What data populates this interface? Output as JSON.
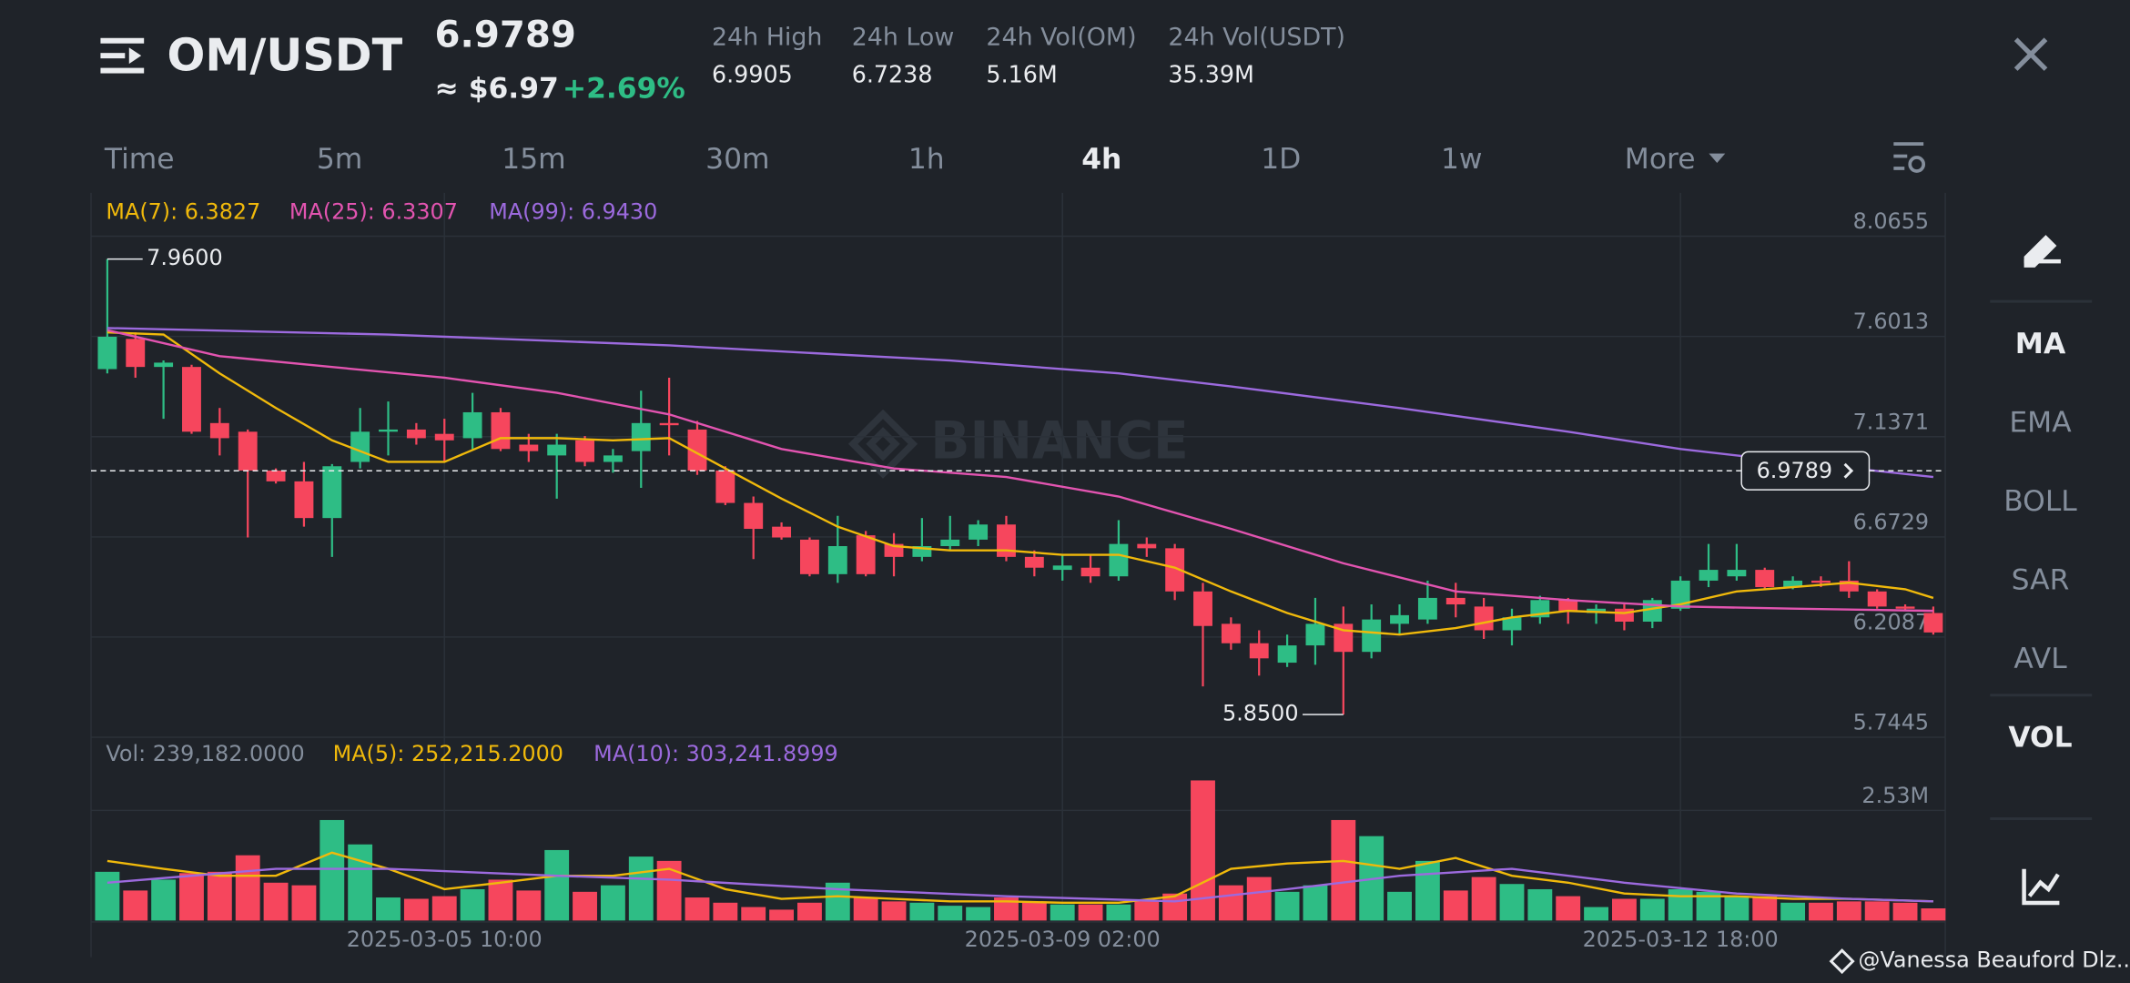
{
  "header": {
    "pair": "OM/USDT",
    "price": "6.9789",
    "price_usd": "≈ $6.97",
    "change": "+2.69%",
    "stats": [
      {
        "label": "24h High",
        "value": "6.9905"
      },
      {
        "label": "24h Low",
        "value": "6.7238"
      },
      {
        "label": "24h Vol(OM)",
        "value": "5.16M"
      },
      {
        "label": "24h Vol(USDT)",
        "value": "35.39M"
      }
    ]
  },
  "intervals": [
    "Time",
    "5m",
    "15m",
    "30m",
    "1h",
    "4h",
    "1D",
    "1w",
    "More"
  ],
  "active_interval": 5,
  "sidebar": [
    "MA",
    "EMA",
    "BOLL",
    "SAR",
    "AVL",
    "VOL"
  ],
  "watermark": "BINANCE",
  "footer": "@Vanessa Beauford Dlz...",
  "chart_data": {
    "type": "candlestick",
    "up_color": "#2ebd85",
    "down_color": "#f6465d",
    "legend": [
      "MA(7): 6.3827",
      "MA(25): 6.3307",
      "MA(99): 6.9430"
    ],
    "ylim": [
      5.7445,
      8.0655
    ],
    "yticks": [
      8.0655,
      7.6013,
      7.1371,
      6.6729,
      6.2087,
      5.7445
    ],
    "xticks": [
      {
        "value": 12,
        "label": "2025-03-05 10:00"
      },
      {
        "value": 34,
        "label": "2025-03-09 02:00"
      },
      {
        "value": 56,
        "label": "2025-03-12 18:00"
      }
    ],
    "last_price": 6.9789,
    "high_marker": {
      "index": 0,
      "value": 7.96,
      "label": "7.9600"
    },
    "low_marker": {
      "index": 44,
      "value": 5.85,
      "label": "5.8500"
    },
    "candles": [
      [
        7.45,
        7.96,
        7.43,
        7.6
      ],
      [
        7.59,
        7.62,
        7.41,
        7.46
      ],
      [
        7.46,
        7.49,
        7.22,
        7.48
      ],
      [
        7.46,
        7.47,
        7.15,
        7.16
      ],
      [
        7.2,
        7.27,
        7.05,
        7.13
      ],
      [
        7.16,
        7.17,
        6.67,
        6.98
      ],
      [
        6.98,
        6.99,
        6.92,
        6.93
      ],
      [
        6.93,
        7.02,
        6.72,
        6.76
      ],
      [
        6.76,
        7.01,
        6.58,
        7.0
      ],
      [
        7.02,
        7.27,
        6.99,
        7.16
      ],
      [
        7.16,
        7.3,
        7.05,
        7.17
      ],
      [
        7.17,
        7.2,
        7.1,
        7.13
      ],
      [
        7.15,
        7.22,
        7.02,
        7.12
      ],
      [
        7.13,
        7.34,
        7.08,
        7.25
      ],
      [
        7.25,
        7.27,
        7.07,
        7.08
      ],
      [
        7.1,
        7.15,
        7.02,
        7.07
      ],
      [
        7.05,
        7.15,
        6.85,
        7.1
      ],
      [
        7.12,
        7.14,
        7.0,
        7.02
      ],
      [
        7.02,
        7.08,
        6.97,
        7.05
      ],
      [
        7.07,
        7.35,
        6.9,
        7.2
      ],
      [
        7.2,
        7.41,
        7.05,
        7.19
      ],
      [
        7.17,
        7.21,
        6.96,
        6.98
      ],
      [
        6.98,
        7.0,
        6.82,
        6.83
      ],
      [
        6.83,
        6.86,
        6.57,
        6.71
      ],
      [
        6.72,
        6.74,
        6.66,
        6.67
      ],
      [
        6.66,
        6.67,
        6.49,
        6.5
      ],
      [
        6.5,
        6.77,
        6.46,
        6.63
      ],
      [
        6.68,
        6.7,
        6.49,
        6.5
      ],
      [
        6.64,
        6.69,
        6.49,
        6.58
      ],
      [
        6.58,
        6.76,
        6.56,
        6.63
      ],
      [
        6.63,
        6.77,
        6.61,
        6.66
      ],
      [
        6.66,
        6.75,
        6.63,
        6.73
      ],
      [
        6.73,
        6.77,
        6.56,
        6.58
      ],
      [
        6.58,
        6.61,
        6.49,
        6.53
      ],
      [
        6.52,
        6.59,
        6.47,
        6.54
      ],
      [
        6.53,
        6.59,
        6.46,
        6.49
      ],
      [
        6.49,
        6.75,
        6.47,
        6.64
      ],
      [
        6.64,
        6.67,
        6.58,
        6.62
      ],
      [
        6.62,
        6.64,
        6.38,
        6.42
      ],
      [
        6.42,
        6.46,
        5.98,
        6.26
      ],
      [
        6.27,
        6.3,
        6.15,
        6.18
      ],
      [
        6.18,
        6.24,
        6.03,
        6.11
      ],
      [
        6.09,
        6.22,
        6.07,
        6.17
      ],
      [
        6.17,
        6.39,
        6.08,
        6.27
      ],
      [
        6.27,
        6.35,
        5.85,
        6.14
      ],
      [
        6.14,
        6.36,
        6.11,
        6.29
      ],
      [
        6.27,
        6.36,
        6.22,
        6.31
      ],
      [
        6.29,
        6.47,
        6.27,
        6.39
      ],
      [
        6.39,
        6.46,
        6.3,
        6.36
      ],
      [
        6.35,
        6.39,
        6.2,
        6.24
      ],
      [
        6.24,
        6.34,
        6.17,
        6.3
      ],
      [
        6.3,
        6.4,
        6.27,
        6.38
      ],
      [
        6.38,
        6.39,
        6.27,
        6.33
      ],
      [
        6.32,
        6.36,
        6.27,
        6.34
      ],
      [
        6.34,
        6.36,
        6.24,
        6.28
      ],
      [
        6.28,
        6.39,
        6.25,
        6.38
      ],
      [
        6.34,
        6.49,
        6.33,
        6.47
      ],
      [
        6.47,
        6.64,
        6.44,
        6.52
      ],
      [
        6.49,
        6.64,
        6.47,
        6.52
      ],
      [
        6.52,
        6.53,
        6.43,
        6.44
      ],
      [
        6.44,
        6.49,
        6.43,
        6.47
      ],
      [
        6.47,
        6.49,
        6.44,
        6.46
      ],
      [
        6.47,
        6.56,
        6.39,
        6.42
      ],
      [
        6.42,
        6.43,
        6.34,
        6.35
      ],
      [
        6.35,
        6.36,
        6.33,
        6.34
      ],
      [
        6.32,
        6.35,
        6.22,
        6.23
      ]
    ],
    "ma_lines": [
      {
        "color": "#f0b90b",
        "x": [
          0,
          2,
          4,
          6,
          8,
          10,
          12,
          14,
          16,
          18,
          20,
          22,
          24,
          26,
          28,
          30,
          32,
          34,
          36,
          38,
          40,
          42,
          44,
          46,
          48,
          50,
          52,
          54,
          56,
          58,
          60,
          62,
          64,
          65
        ],
        "values": [
          7.62,
          7.61,
          7.43,
          7.27,
          7.12,
          7.02,
          7.02,
          7.13,
          7.13,
          7.12,
          7.13,
          6.99,
          6.85,
          6.72,
          6.63,
          6.61,
          6.61,
          6.59,
          6.59,
          6.53,
          6.42,
          6.32,
          6.24,
          6.22,
          6.25,
          6.3,
          6.33,
          6.32,
          6.36,
          6.42,
          6.44,
          6.46,
          6.43,
          6.39
        ]
      },
      {
        "color": "#e254b0",
        "x": [
          0,
          4,
          8,
          12,
          16,
          20,
          24,
          28,
          32,
          36,
          40,
          44,
          48,
          52,
          56,
          60,
          65
        ],
        "values": [
          7.63,
          7.51,
          7.46,
          7.41,
          7.34,
          7.24,
          7.08,
          6.99,
          6.95,
          6.86,
          6.71,
          6.55,
          6.42,
          6.38,
          6.35,
          6.34,
          6.33
        ]
      },
      {
        "color": "#9c6ade",
        "x": [
          0,
          10,
          20,
          30,
          36,
          40,
          46,
          52,
          56,
          60,
          65
        ],
        "values": [
          7.64,
          7.61,
          7.56,
          7.49,
          7.43,
          7.37,
          7.27,
          7.16,
          7.08,
          7.02,
          6.95
        ]
      }
    ],
    "volume": {
      "legend": [
        "Vol: 239,182.0000",
        "MA(5): 252,215.2000",
        "MA(10): 303,241.8999"
      ],
      "ylim": [
        0,
        3370000
      ],
      "yticks": [
        {
          "value": 2530000,
          "label": "2.53M"
        }
      ],
      "values": [
        1120000,
        690000,
        940000,
        1090000,
        1120000,
        1500000,
        870000,
        810000,
        2310000,
        1750000,
        530000,
        500000,
        560000,
        720000,
        940000,
        690000,
        1620000,
        660000,
        810000,
        1470000,
        1370000,
        530000,
        410000,
        310000,
        250000,
        410000,
        870000,
        530000,
        440000,
        410000,
        340000,
        310000,
        530000,
        440000,
        370000,
        370000,
        370000,
        440000,
        620000,
        3220000,
        810000,
        1000000,
        660000,
        810000,
        2310000,
        1940000,
        660000,
        1370000,
        690000,
        1000000,
        840000,
        720000,
        560000,
        310000,
        500000,
        500000,
        720000,
        660000,
        560000,
        560000,
        410000,
        410000,
        440000,
        440000,
        410000,
        280000
      ],
      "ma_lines": [
        {
          "color": "#f0b90b",
          "x": [
            0,
            2,
            4,
            6,
            8,
            10,
            12,
            14,
            16,
            18,
            20,
            22,
            24,
            26,
            28,
            30,
            32,
            34,
            36,
            38,
            40,
            42,
            44,
            46,
            48,
            50,
            52,
            54,
            56,
            58,
            60,
            62,
            65
          ],
          "values": [
            1370000,
            1190000,
            1030000,
            1030000,
            1560000,
            1190000,
            720000,
            870000,
            1030000,
            1030000,
            1190000,
            720000,
            500000,
            560000,
            500000,
            440000,
            440000,
            410000,
            410000,
            560000,
            1190000,
            1310000,
            1370000,
            1190000,
            1440000,
            1030000,
            870000,
            620000,
            560000,
            560000,
            500000,
            500000,
            440000
          ]
        },
        {
          "color": "#9c6ade",
          "x": [
            0,
            6,
            10,
            16,
            20,
            26,
            32,
            38,
            42,
            46,
            50,
            54,
            58,
            62,
            65
          ],
          "values": [
            870000,
            1190000,
            1190000,
            1030000,
            940000,
            720000,
            560000,
            440000,
            720000,
            1030000,
            1190000,
            870000,
            620000,
            500000,
            440000
          ]
        }
      ]
    }
  }
}
